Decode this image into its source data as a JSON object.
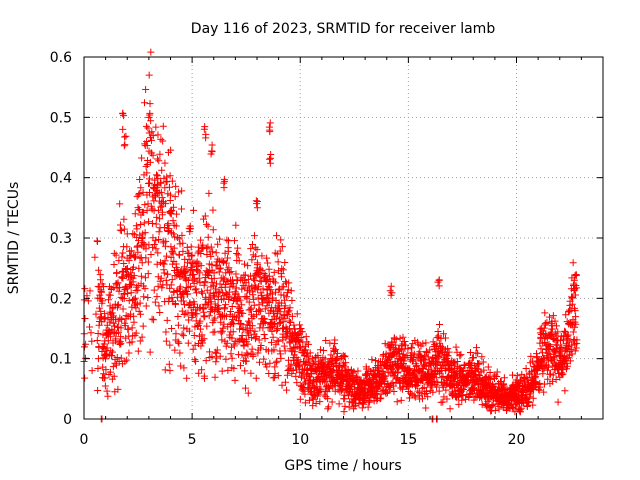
{
  "chart_data": {
    "type": "scatter",
    "title": "Day 116 of 2023, SRMTID for receiver lamb",
    "xlabel": "GPS time / hours",
    "ylabel": "SRMTID / TECUs",
    "xlim": [
      0,
      24
    ],
    "ylim": [
      0,
      0.6
    ],
    "xticks": [
      "0",
      "5",
      "10",
      "15",
      "20"
    ],
    "yticks": [
      "0",
      "0.1",
      "0.2",
      "0.3",
      "0.4",
      "0.5",
      "0.6"
    ],
    "grid": true,
    "marker": "plus",
    "color": "#ff0000",
    "series": [
      {
        "name": "SRMTID",
        "trend": [
          [
            0.0,
            0.15
          ],
          [
            0.5,
            0.17
          ],
          [
            0.7,
            0.17
          ],
          [
            0.9,
            0.15
          ],
          [
            1.0,
            0.12
          ],
          [
            1.2,
            0.14
          ],
          [
            1.4,
            0.17
          ],
          [
            1.6,
            0.21
          ],
          [
            1.8,
            0.22
          ],
          [
            2.0,
            0.2
          ],
          [
            2.2,
            0.22
          ],
          [
            2.4,
            0.23
          ],
          [
            2.6,
            0.27
          ],
          [
            2.8,
            0.33
          ],
          [
            3.0,
            0.37
          ],
          [
            3.2,
            0.36
          ],
          [
            3.4,
            0.33
          ],
          [
            3.6,
            0.31
          ],
          [
            3.8,
            0.29
          ],
          [
            4.0,
            0.26
          ],
          [
            4.3,
            0.23
          ],
          [
            4.6,
            0.21
          ],
          [
            5.0,
            0.22
          ],
          [
            5.3,
            0.19
          ],
          [
            5.6,
            0.24
          ],
          [
            6.0,
            0.22
          ],
          [
            6.3,
            0.2
          ],
          [
            6.6,
            0.2
          ],
          [
            7.0,
            0.18
          ],
          [
            7.3,
            0.17
          ],
          [
            7.6,
            0.16
          ],
          [
            8.0,
            0.2
          ],
          [
            8.3,
            0.19
          ],
          [
            8.6,
            0.17
          ],
          [
            9.0,
            0.2
          ],
          [
            9.3,
            0.17
          ],
          [
            9.6,
            0.13
          ],
          [
            10.0,
            0.1
          ],
          [
            10.3,
            0.08
          ],
          [
            10.6,
            0.06
          ],
          [
            11.0,
            0.08
          ],
          [
            11.5,
            0.08
          ],
          [
            12.0,
            0.07
          ],
          [
            12.5,
            0.05
          ],
          [
            13.0,
            0.05
          ],
          [
            13.5,
            0.06
          ],
          [
            14.0,
            0.08
          ],
          [
            14.5,
            0.09
          ],
          [
            15.0,
            0.08
          ],
          [
            15.5,
            0.08
          ],
          [
            16.0,
            0.08
          ],
          [
            16.5,
            0.1
          ],
          [
            17.0,
            0.07
          ],
          [
            17.5,
            0.06
          ],
          [
            18.0,
            0.07
          ],
          [
            18.5,
            0.06
          ],
          [
            19.0,
            0.04
          ],
          [
            19.5,
            0.04
          ],
          [
            20.0,
            0.04
          ],
          [
            20.5,
            0.05
          ],
          [
            21.0,
            0.08
          ],
          [
            21.3,
            0.12
          ],
          [
            21.6,
            0.11
          ],
          [
            22.0,
            0.09
          ],
          [
            22.3,
            0.11
          ],
          [
            22.6,
            0.17
          ],
          [
            22.8,
            0.18
          ]
        ],
        "peaks": [
          [
            1.8,
            0.51
          ],
          [
            1.9,
            0.48
          ],
          [
            3.0,
            0.42
          ],
          [
            3.4,
            0.41
          ],
          [
            4.0,
            0.35
          ],
          [
            5.6,
            0.49
          ],
          [
            5.9,
            0.46
          ],
          [
            6.5,
            0.4
          ],
          [
            8.0,
            0.37
          ],
          [
            8.6,
            0.5
          ],
          [
            8.6,
            0.44
          ],
          [
            14.2,
            0.23
          ],
          [
            16.4,
            0.24
          ],
          [
            22.7,
            0.24
          ]
        ],
        "gaps_at_zero": [
          0.8,
          16.1,
          16.3
        ]
      }
    ]
  }
}
